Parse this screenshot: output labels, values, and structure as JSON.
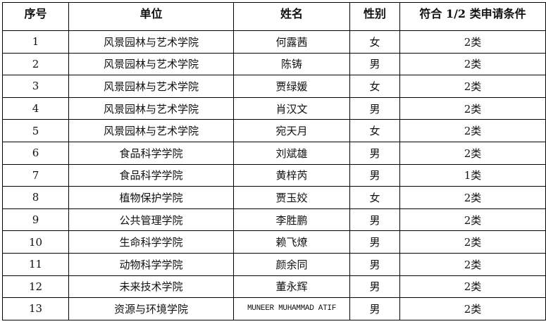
{
  "headers": [
    "序号",
    "单位",
    "姓名",
    "性别",
    "符合 1/2 类申请条件"
  ],
  "rows": [
    [
      "1",
      "风景园林与艺术学院",
      "何露茜",
      "女",
      "2类"
    ],
    [
      "2",
      "风景园林与艺术学院",
      "陈铸",
      "男",
      "2类"
    ],
    [
      "3",
      "风景园林与艺术学院",
      "贾绿媛",
      "女",
      "2类"
    ],
    [
      "4",
      "风景园林与艺术学院",
      "肖汉文",
      "男",
      "2类"
    ],
    [
      "5",
      "风景园林与艺术学院",
      "宛天月",
      "女",
      "2类"
    ],
    [
      "6",
      "食品科学学院",
      "刘斌雄",
      "男",
      "2类"
    ],
    [
      "7",
      "食品科学学院",
      "黄梓芮",
      "男",
      "1类"
    ],
    [
      "8",
      "植物保护学院",
      "贾玉姣",
      "女",
      "2类"
    ],
    [
      "9",
      "公共管理学院",
      "李胜鹏",
      "男",
      "2类"
    ],
    [
      "10",
      "生命科学学院",
      "赖飞燎",
      "男",
      "2类"
    ],
    [
      "11",
      "动物科学学院",
      "颜余同",
      "男",
      "2类"
    ],
    [
      "12",
      "未来技术学院",
      "董永辉",
      "男",
      "2类"
    ],
    [
      "13",
      "资源与环境学院",
      "MUNEER MUHAMMAD ATIF",
      "男",
      "2类"
    ]
  ]
}
